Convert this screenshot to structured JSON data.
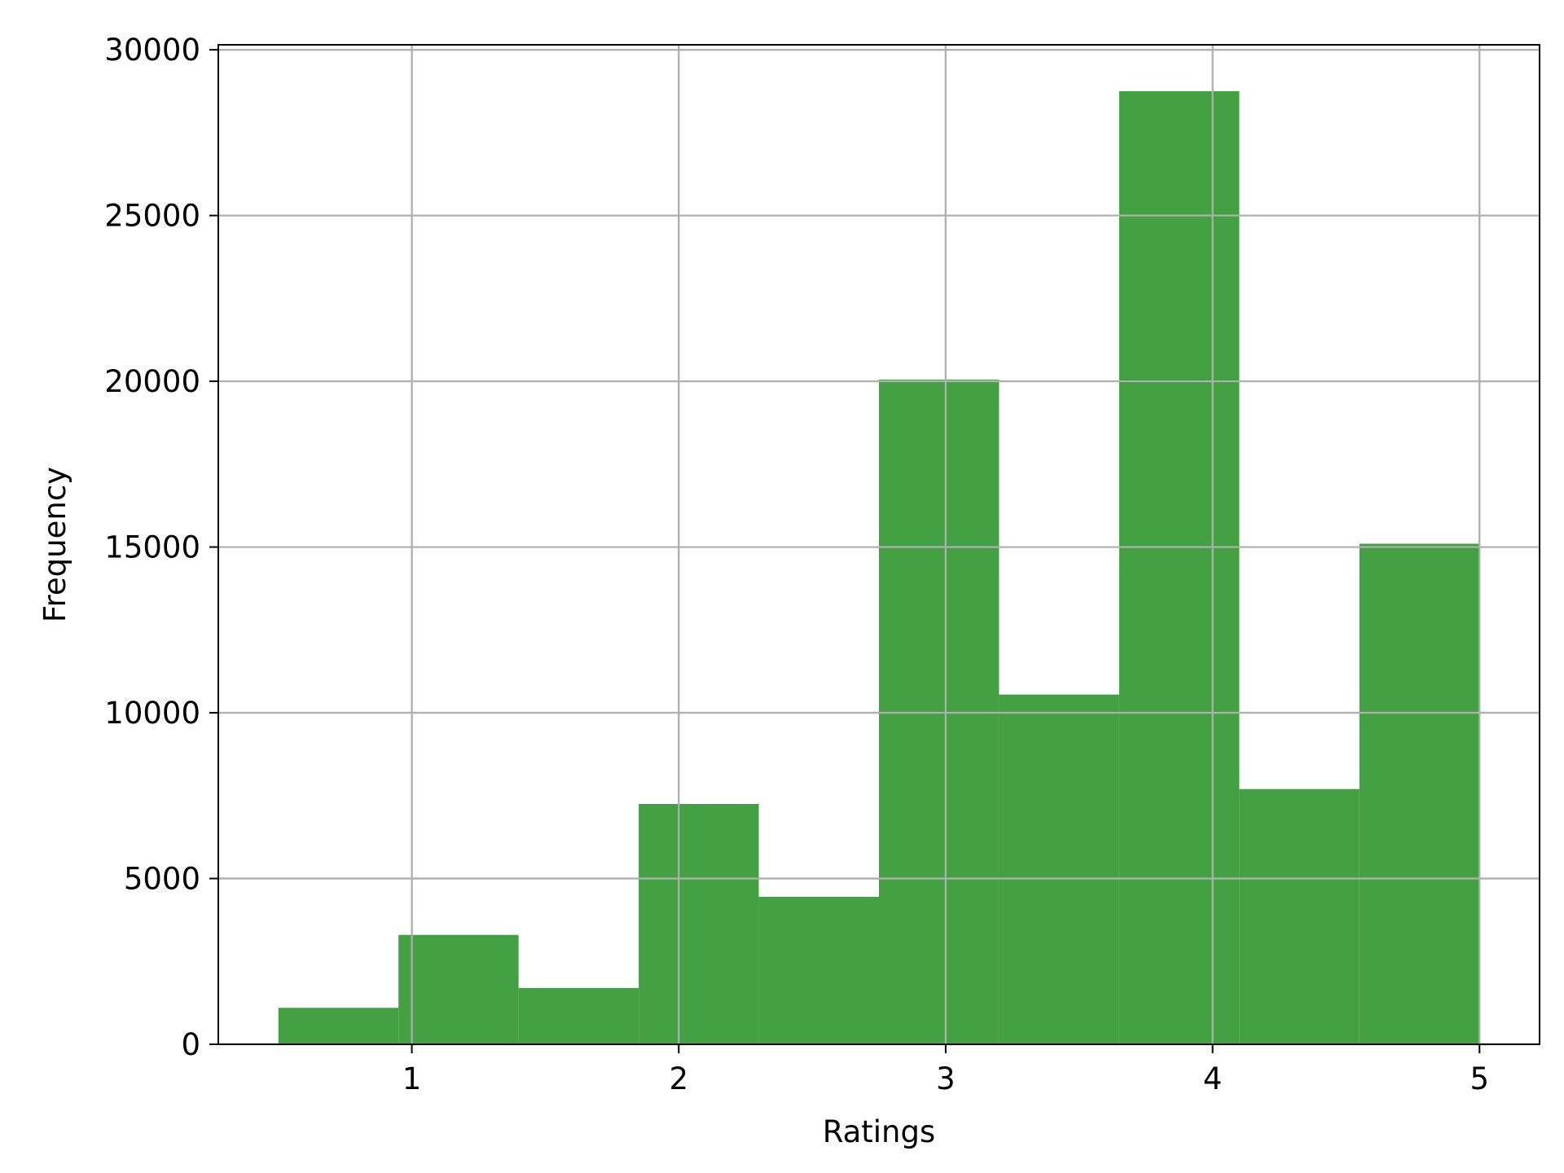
{
  "chart_data": {
    "type": "bar",
    "subtype": "histogram",
    "title": "",
    "xlabel": "Ratings",
    "ylabel": "Frequency",
    "xlim": [
      0.275,
      5.225
    ],
    "ylim": [
      0,
      30150
    ],
    "x_ticks": [
      1,
      2,
      3,
      4,
      5
    ],
    "y_ticks": [
      0,
      5000,
      10000,
      15000,
      20000,
      25000,
      30000
    ],
    "grid": true,
    "legend": false,
    "bar_color": "#3f9f40",
    "grid_color": "#b0b0b0",
    "bins": [
      {
        "x_start": 0.5,
        "x_end": 0.95,
        "value": 1100
      },
      {
        "x_start": 0.95,
        "x_end": 1.4,
        "value": 3300
      },
      {
        "x_start": 1.4,
        "x_end": 1.85,
        "value": 1700
      },
      {
        "x_start": 1.85,
        "x_end": 2.3,
        "value": 7250
      },
      {
        "x_start": 2.3,
        "x_end": 2.75,
        "value": 4450
      },
      {
        "x_start": 2.75,
        "x_end": 3.2,
        "value": 20050
      },
      {
        "x_start": 3.2,
        "x_end": 3.65,
        "value": 10550
      },
      {
        "x_start": 3.65,
        "x_end": 4.1,
        "value": 28750
      },
      {
        "x_start": 4.1,
        "x_end": 4.55,
        "value": 7700
      },
      {
        "x_start": 4.55,
        "x_end": 5.0,
        "value": 15100
      }
    ]
  }
}
